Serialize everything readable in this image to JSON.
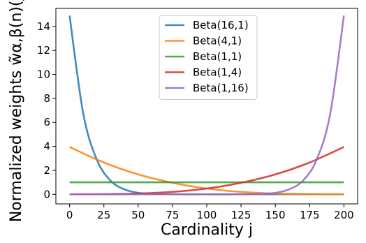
{
  "chart_data": {
    "type": "line",
    "xlabel": "Cardinality j",
    "ylabel": "Normalized weights w̃α,β(n)(j)",
    "xlim": [
      -10,
      210
    ],
    "ylim": [
      -0.8,
      15.5
    ],
    "x_ticks": [
      0,
      25,
      50,
      75,
      100,
      125,
      150,
      175,
      200
    ],
    "y_ticks": [
      0,
      2,
      4,
      6,
      8,
      10,
      12,
      14
    ],
    "grid": false,
    "legend_position": "top-center",
    "series": [
      {
        "name": "Beta(16,1)",
        "color": "#1f77b4",
        "x": [
          0,
          10,
          20,
          30,
          40,
          50,
          60,
          80,
          100,
          120,
          140,
          160,
          180,
          200
        ],
        "y": [
          14.9,
          6.7,
          2.85,
          1.12,
          0.41,
          0.12,
          0.03,
          0.0,
          0.0,
          0.0,
          0.0,
          0.0,
          0.0,
          0.0
        ]
      },
      {
        "name": "Beta(4,1)",
        "color": "#ff7f0e",
        "x": [
          0,
          25,
          50,
          75,
          100,
          125,
          150,
          175,
          200
        ],
        "y": [
          3.95,
          2.65,
          1.66,
          0.96,
          0.48,
          0.2,
          0.06,
          0.01,
          0.0
        ]
      },
      {
        "name": "Beta(1,1)",
        "color": "#2ca02c",
        "x": [
          0,
          200
        ],
        "y": [
          1.0,
          1.0
        ]
      },
      {
        "name": "Beta(1,4)",
        "color": "#d62728",
        "x": [
          0,
          25,
          50,
          75,
          100,
          125,
          150,
          175,
          200
        ],
        "y": [
          0.0,
          0.01,
          0.06,
          0.2,
          0.48,
          0.96,
          1.66,
          2.65,
          3.95
        ]
      },
      {
        "name": "Beta(1,16)",
        "color": "#9467bd",
        "x": [
          0,
          20,
          40,
          60,
          80,
          100,
          120,
          140,
          150,
          160,
          170,
          180,
          190,
          200
        ],
        "y": [
          0.0,
          0.0,
          0.0,
          0.0,
          0.0,
          0.0,
          0.0,
          0.03,
          0.12,
          0.41,
          1.12,
          2.85,
          6.7,
          14.9
        ]
      }
    ]
  }
}
